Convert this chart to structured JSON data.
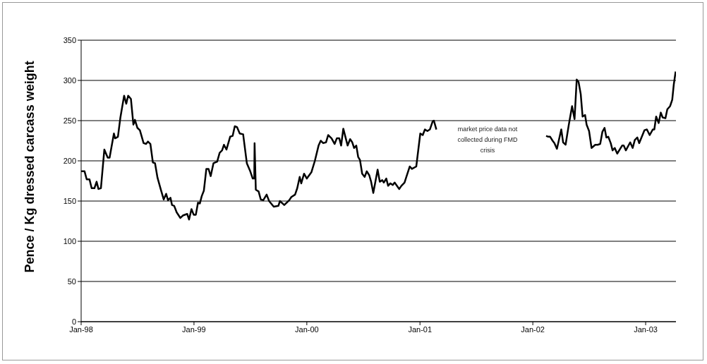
{
  "chart_data": {
    "type": "line",
    "ylabel": "Pence / Kg dressed carcass weight",
    "annotations": [
      "market price data not collected during FMD crisis"
    ],
    "x": [
      "1998-01-01",
      "1998-01-12",
      "1998-01-19",
      "1998-01-28",
      "1998-02-04",
      "1998-02-13",
      "1998-02-20",
      "1998-02-26",
      "1998-03-06",
      "1998-03-17",
      "1998-03-28",
      "1998-04-03",
      "1998-04-17",
      "1998-04-21",
      "1998-04-30",
      "1998-05-08",
      "1998-05-20",
      "1998-05-27",
      "1998-06-02",
      "1998-06-11",
      "1998-06-19",
      "1998-06-24",
      "1998-07-02",
      "1998-07-10",
      "1998-07-22",
      "1998-07-30",
      "1998-08-05",
      "1998-08-13",
      "1998-08-21",
      "1998-08-28",
      "1998-09-05",
      "1998-09-16",
      "1998-09-25",
      "1998-10-03",
      "1998-10-09",
      "1998-10-17",
      "1998-10-22",
      "1998-10-29",
      "1998-11-06",
      "1998-11-18",
      "1998-11-26",
      "1998-12-10",
      "1998-12-16",
      "1998-12-24",
      "1998-12-31",
      "1999-01-07",
      "1999-01-14",
      "1999-01-20",
      "1999-01-26",
      "1999-02-02",
      "1999-02-10",
      "1999-02-17",
      "1999-02-24",
      "1999-03-05",
      "1999-03-17",
      "1999-03-25",
      "1999-04-02",
      "1999-04-08",
      "1999-04-16",
      "1999-04-28",
      "1999-05-06",
      "1999-05-13",
      "1999-05-20",
      "1999-05-29",
      "1999-06-09",
      "1999-06-21",
      "1999-07-02",
      "1999-07-10",
      "1999-07-15",
      "1999-07-16",
      "1999-07-20",
      "1999-07-29",
      "1999-08-05",
      "1999-08-13",
      "1999-08-24",
      "1999-09-01",
      "1999-09-16",
      "1999-10-01",
      "1999-10-06",
      "1999-10-20",
      "1999-11-05",
      "1999-11-12",
      "1999-11-24",
      "1999-12-01",
      "1999-12-09",
      "1999-12-14",
      "1999-12-23",
      "2000-01-01",
      "2000-01-16",
      "2000-01-27",
      "2000-02-08",
      "2000-02-15",
      "2000-02-23",
      "2000-03-03",
      "2000-03-10",
      "2000-03-21",
      "2000-03-31",
      "2000-04-07",
      "2000-04-15",
      "2000-04-21",
      "2000-04-28",
      "2000-05-06",
      "2000-05-12",
      "2000-05-20",
      "2000-05-27",
      "2000-06-02",
      "2000-06-09",
      "2000-06-15",
      "2000-06-21",
      "2000-06-28",
      "2000-07-06",
      "2000-07-13",
      "2000-07-21",
      "2000-07-27",
      "2000-08-03",
      "2000-08-17",
      "2000-08-24",
      "2000-09-01",
      "2000-09-06",
      "2000-09-14",
      "2000-09-20",
      "2000-09-27",
      "2000-10-05",
      "2000-10-11",
      "2000-10-26",
      "2000-11-02",
      "2000-11-12",
      "2000-11-29",
      "2000-12-06",
      "2000-12-20",
      "2001-01-02",
      "2001-01-10",
      "2001-01-17",
      "2001-01-25",
      "2001-02-02",
      "2001-02-11",
      "2001-02-15",
      "2001-02-23",
      "2001-07-02",
      "2002-02-13",
      "2002-02-20",
      "2002-02-26",
      "2002-03-06",
      "2002-03-12",
      "2002-03-20",
      "2002-04-03",
      "2002-04-09",
      "2002-04-17",
      "2002-04-27",
      "2002-05-08",
      "2002-05-16",
      "2002-05-23",
      "2002-05-29",
      "2002-06-05",
      "2002-06-11",
      "2002-06-19",
      "2002-06-24",
      "2002-07-02",
      "2002-07-10",
      "2002-07-22",
      "2002-07-30",
      "2002-08-07",
      "2002-08-14",
      "2002-08-21",
      "2002-08-27",
      "2002-09-02",
      "2002-09-10",
      "2002-09-16",
      "2002-09-23",
      "2002-10-01",
      "2002-10-17",
      "2002-10-22",
      "2002-10-29",
      "2002-11-12",
      "2002-11-20",
      "2002-11-27",
      "2002-12-05",
      "2002-12-11",
      "2002-12-28",
      "2003-01-05",
      "2003-01-14",
      "2003-01-24",
      "2003-01-29",
      "2003-02-04",
      "2003-02-12",
      "2003-02-19",
      "2003-02-25",
      "2003-03-06",
      "2003-03-12",
      "2003-03-21",
      "2003-03-28",
      "2003-04-02",
      "2003-04-08"
    ],
    "series": [
      {
        "color": "#000000",
        "values": [
          187,
          187,
          177,
          177,
          166,
          166,
          174,
          165,
          166,
          214,
          204,
          204,
          234,
          228,
          230,
          254,
          281,
          271,
          281,
          277,
          245,
          251,
          241,
          238,
          222,
          221,
          224,
          221,
          198,
          197,
          179,
          164,
          152,
          159,
          151,
          154,
          145,
          144,
          136,
          129,
          132,
          134,
          127,
          140,
          133,
          133,
          148,
          147,
          156,
          163,
          190,
          190,
          181,
          197,
          199,
          210,
          213,
          220,
          214,
          230,
          231,
          243,
          242,
          234,
          233,
          197,
          187,
          178,
          178,
          222,
          164,
          162,
          152,
          151,
          158,
          150,
          143,
          144,
          150,
          145,
          151,
          155,
          158,
          166,
          180,
          172,
          184,
          178,
          186,
          200,
          219,
          225,
          222,
          223,
          232,
          228,
          221,
          228,
          228,
          219,
          240,
          228,
          219,
          227,
          223,
          216,
          219,
          205,
          201,
          184,
          180,
          187,
          182,
          174,
          160,
          189,
          174,
          176,
          173,
          178,
          169,
          172,
          170,
          173,
          165,
          169,
          173,
          193,
          190,
          193,
          234,
          232,
          239,
          237,
          239,
          249,
          250,
          239,
          null,
          231,
          230,
          230,
          225,
          222,
          215,
          239,
          223,
          220,
          244,
          268,
          252,
          301,
          298,
          283,
          255,
          257,
          245,
          237,
          216,
          220,
          220,
          221,
          236,
          241,
          229,
          230,
          222,
          213,
          216,
          209,
          219,
          219,
          213,
          223,
          216,
          226,
          229,
          222,
          238,
          239,
          232,
          239,
          239,
          255,
          247,
          260,
          254,
          253,
          264,
          268,
          276,
          295,
          311
        ]
      }
    ],
    "xlim": [
      "1998-01-01",
      "2003-04-09"
    ],
    "xticks": [
      {
        "value": "1998-01-01",
        "label": "Jan-98"
      },
      {
        "value": "1999-01-01",
        "label": "Jan-99"
      },
      {
        "value": "2000-01-01",
        "label": "Jan-00"
      },
      {
        "value": "2001-01-01",
        "label": "Jan-01"
      },
      {
        "value": "2002-01-01",
        "label": "Jan-02"
      },
      {
        "value": "2003-01-01",
        "label": "Jan-03"
      }
    ],
    "ylim": [
      0,
      350
    ],
    "yticks": [
      0,
      50,
      100,
      150,
      200,
      250,
      300,
      350
    ],
    "grid": "y"
  }
}
